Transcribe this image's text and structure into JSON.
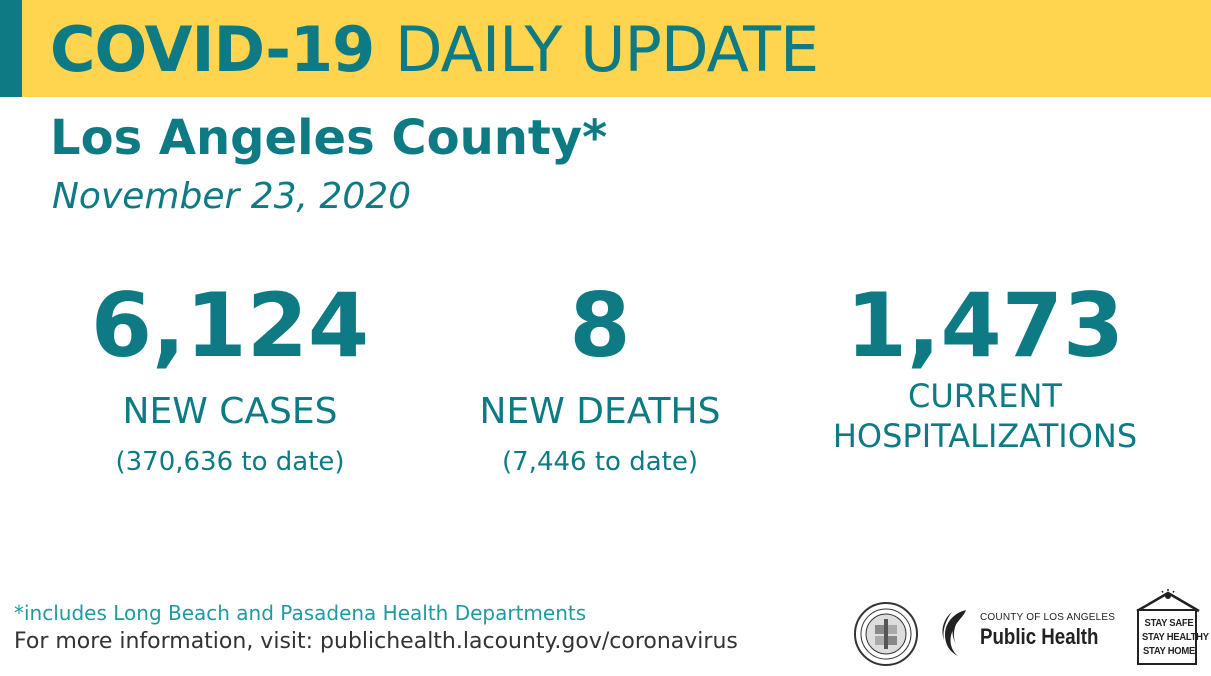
{
  "banner": {
    "title_bold": "COVID-19",
    "title_light": "DAILY UPDATE"
  },
  "header": {
    "county": "Los Angeles County*",
    "date": "November 23, 2020"
  },
  "stats": {
    "cases": {
      "number": "6,124",
      "label": "NEW CASES",
      "sub": "(370,636 to date)"
    },
    "deaths": {
      "number": "8",
      "label": "NEW DEATHS",
      "sub": "(7,446 to date)"
    },
    "hospitalizations": {
      "number": "1,473",
      "label_line1": "CURRENT",
      "label_line2": "HOSPITALIZATIONS"
    }
  },
  "footer": {
    "footnote": "*includes Long Beach and Pasadena Health Departments",
    "more_info": "For more information, visit: publichealth.lacounty.gov/coronavirus"
  },
  "logos": {
    "public_health_small": "COUNTY OF LOS ANGELES",
    "public_health_big": "Public Health",
    "stay_line1": "STAY SAFE",
    "stay_line2": "STAY HEALTHY",
    "stay_line3": "STAY HOME"
  },
  "colors": {
    "teal": "#0e7a84",
    "yellow": "#ffd54f",
    "footnote_teal": "#1f9aa0",
    "dark_text": "#333333"
  }
}
